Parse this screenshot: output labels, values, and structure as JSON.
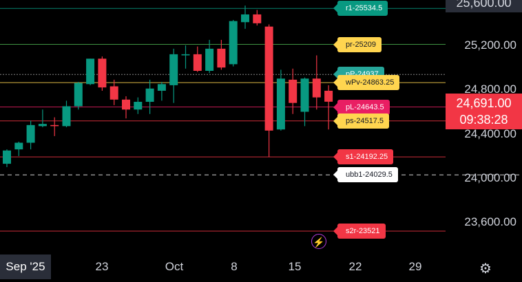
{
  "chart_data": {
    "type": "candlestick",
    "x_ticks": [
      "Sep '25",
      "23",
      "Oct",
      "8",
      "15",
      "22",
      "29"
    ],
    "y_ticks": [
      "25,600.00",
      "25,200.00",
      "24,800.00",
      "24,400.00",
      "24,000.00",
      "23,600.00"
    ],
    "last_price": "24,691.00",
    "countdown": "09:38:28",
    "levels": [
      {
        "label": "r1-25534.5",
        "value": 25534.5,
        "color": "#089981"
      },
      {
        "label": "pr-25209",
        "value": 25209,
        "color": "#f5c542"
      },
      {
        "label": "pP-24937",
        "value": 24937,
        "color": "#26a69a"
      },
      {
        "label": "wPv-24863.25",
        "value": 24863.25,
        "color": "#f5c542"
      },
      {
        "label": "pL-24643.5",
        "value": 24643.5,
        "color": "#e91e63"
      },
      {
        "label": "ps-24517.5",
        "value": 24517.5,
        "color": "#f5c542"
      },
      {
        "label": "s1-24192.25",
        "value": 24192.25,
        "color": "#f23645"
      },
      {
        "label": "ubb1-24029.5",
        "value": 24029.5,
        "color": "#ffffff"
      },
      {
        "label": "s2r-23521",
        "value": 23521,
        "color": "#f23645"
      }
    ],
    "candles": [
      {
        "o": 24130,
        "h": 24260,
        "l": 24100,
        "c": 24250
      },
      {
        "o": 24260,
        "h": 24330,
        "l": 24200,
        "c": 24320
      },
      {
        "o": 24320,
        "h": 24520,
        "l": 24260,
        "c": 24480
      },
      {
        "o": 24470,
        "h": 24620,
        "l": 24460,
        "c": 24490
      },
      {
        "o": 24480,
        "h": 24550,
        "l": 24380,
        "c": 24470
      },
      {
        "o": 24470,
        "h": 24700,
        "l": 24460,
        "c": 24650
      },
      {
        "o": 24650,
        "h": 24870,
        "l": 24620,
        "c": 24860
      },
      {
        "o": 24850,
        "h": 25080,
        "l": 24840,
        "c": 25080
      },
      {
        "o": 25080,
        "h": 25100,
        "l": 24790,
        "c": 24820
      },
      {
        "o": 24830,
        "h": 24890,
        "l": 24660,
        "c": 24710
      },
      {
        "o": 24710,
        "h": 24740,
        "l": 24540,
        "c": 24620
      },
      {
        "o": 24620,
        "h": 24730,
        "l": 24580,
        "c": 24690
      },
      {
        "o": 24690,
        "h": 24890,
        "l": 24580,
        "c": 24810
      },
      {
        "o": 24790,
        "h": 24870,
        "l": 24700,
        "c": 24850
      },
      {
        "o": 24840,
        "h": 25170,
        "l": 24680,
        "c": 25120
      },
      {
        "o": 25110,
        "h": 25200,
        "l": 24990,
        "c": 25120
      },
      {
        "o": 25120,
        "h": 25190,
        "l": 24960,
        "c": 24970
      },
      {
        "o": 24970,
        "h": 25250,
        "l": 24950,
        "c": 25170
      },
      {
        "o": 25170,
        "h": 25250,
        "l": 24980,
        "c": 25000
      },
      {
        "o": 25030,
        "h": 25430,
        "l": 25010,
        "c": 25420
      },
      {
        "o": 25410,
        "h": 25560,
        "l": 25350,
        "c": 25480
      },
      {
        "o": 25480,
        "h": 25520,
        "l": 25380,
        "c": 25400
      },
      {
        "o": 25370,
        "h": 25390,
        "l": 24190,
        "c": 24430
      },
      {
        "o": 24440,
        "h": 24980,
        "l": 24430,
        "c": 24900
      },
      {
        "o": 24890,
        "h": 24990,
        "l": 24580,
        "c": 24680
      },
      {
        "o": 24600,
        "h": 24910,
        "l": 24470,
        "c": 24900
      },
      {
        "o": 24900,
        "h": 25110,
        "l": 24620,
        "c": 24730
      },
      {
        "o": 24790,
        "h": 24840,
        "l": 24440,
        "c": 24691
      }
    ]
  },
  "ui": {
    "timezone_icon": "bolt-icon",
    "settings_icon": "gear-icon"
  }
}
